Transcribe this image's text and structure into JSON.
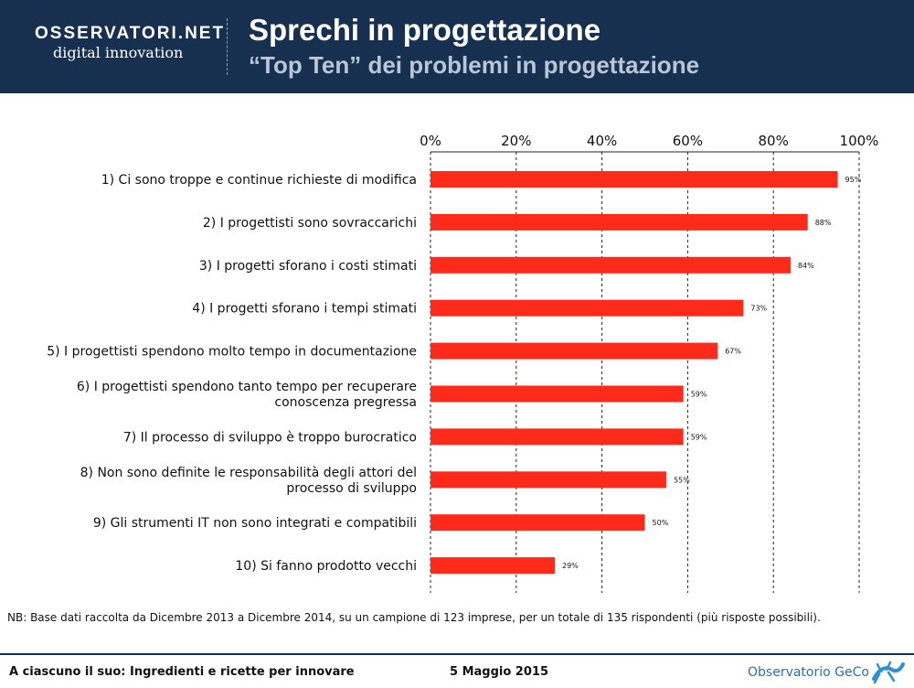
{
  "header": {
    "logo_top": "OSSERVATORI.NET",
    "logo_bottom": "digital innovation",
    "title": "Sprechi in progettazione",
    "subtitle": "“Top Ten” dei problemi in progettazione"
  },
  "chart_data": {
    "type": "bar",
    "orientation": "horizontal",
    "xlim": [
      0,
      100
    ],
    "ticks": [
      "0%",
      "20%",
      "40%",
      "60%",
      "80%",
      "100%"
    ],
    "tick_values": [
      0,
      20,
      40,
      60,
      80,
      100
    ],
    "grid": true,
    "bar_color": "#ff2a1a",
    "categories": [
      [
        "1) Ci sono troppe e continue richieste di modifica"
      ],
      [
        "2) I progettisti sono sovraccarichi"
      ],
      [
        "3) I progetti sforano i costi stimati"
      ],
      [
        "4) I progetti sforano i tempi stimati"
      ],
      [
        "5) I progettisti spendono molto tempo in documentazione"
      ],
      [
        "6) I progettisti spendono tanto tempo per recuperare",
        "conoscenza pregressa"
      ],
      [
        "7) Il processo di sviluppo è troppo burocratico"
      ],
      [
        "8) Non sono definite le responsabilità degli attori del",
        "processo di sviluppo"
      ],
      [
        "9) Gli strumenti IT non sono integrati e compatibili"
      ],
      [
        "10) Si fanno prodotto vecchi"
      ]
    ],
    "values": [
      95,
      88,
      84,
      73,
      67,
      59,
      59,
      55,
      50,
      29
    ],
    "value_labels": [
      "95%",
      "88%",
      "84%",
      "73%",
      "67%",
      "59%",
      "59%",
      "55%",
      "50%",
      "29%"
    ]
  },
  "note": "NB: Base dati raccolta da Dicembre 2013 a Dicembre 2014, su un campione di 123 imprese, per un totale di 135 rispondenti (più risposte possibili).",
  "footer": {
    "left": "A ciascuno il suo: Ingredienti e ricette per innovare",
    "center": "5 Maggio 2015",
    "right": "Observatorio GeCo"
  }
}
